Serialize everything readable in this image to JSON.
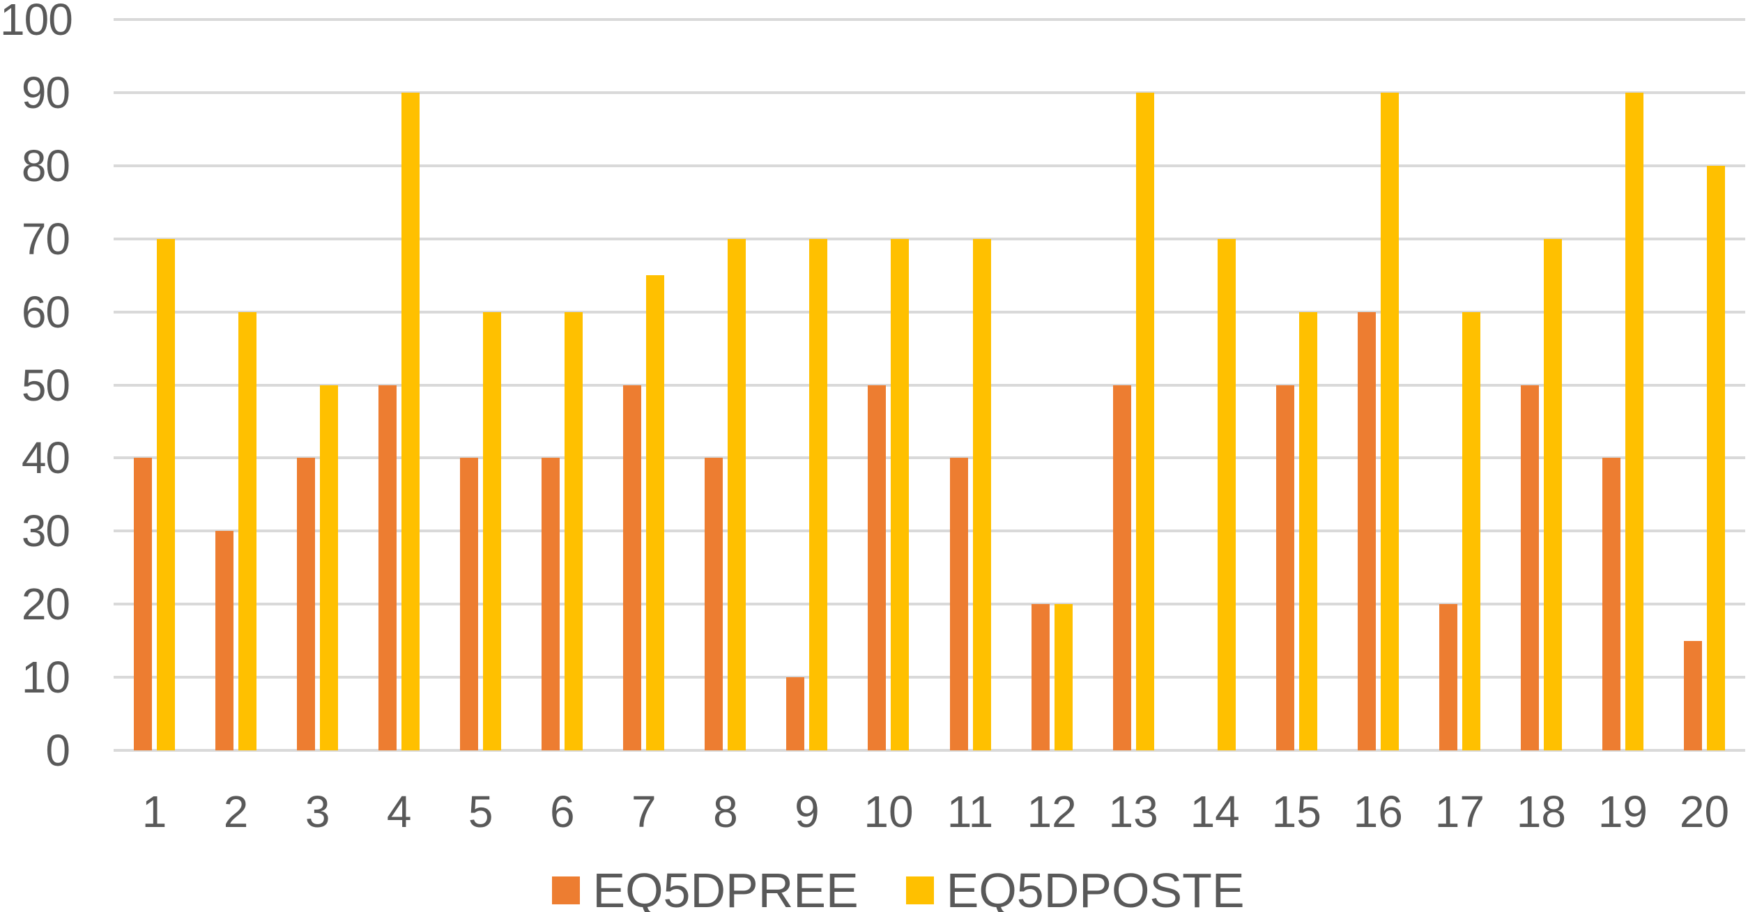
{
  "chart_data": {
    "type": "bar",
    "title": "",
    "xlabel": "",
    "ylabel": "",
    "categories": [
      "1",
      "2",
      "3",
      "4",
      "5",
      "6",
      "7",
      "8",
      "9",
      "10",
      "11",
      "12",
      "13",
      "14",
      "15",
      "16",
      "17",
      "18",
      "19",
      "20"
    ],
    "series": [
      {
        "name": "EQ5DPREE",
        "color": "#ED7D31",
        "values": [
          40,
          30,
          40,
          50,
          40,
          40,
          50,
          40,
          10,
          50,
          40,
          20,
          50,
          null,
          50,
          60,
          20,
          50,
          40,
          15
        ]
      },
      {
        "name": "EQ5DPOSTE",
        "color": "#FFC000",
        "values": [
          70,
          60,
          50,
          90,
          60,
          60,
          65,
          70,
          70,
          70,
          70,
          20,
          90,
          70,
          60,
          90,
          60,
          70,
          90,
          80
        ]
      }
    ],
    "ylim": [
      0,
      100
    ],
    "y_ticks": [
      0,
      10,
      20,
      30,
      40,
      50,
      60,
      70,
      80,
      90,
      100
    ],
    "grid": "horizontal",
    "legend_position": "bottom",
    "gridline_color": "#D9D9D9",
    "axis_text_color": "#595959",
    "background_color": "#FFFFFF"
  }
}
